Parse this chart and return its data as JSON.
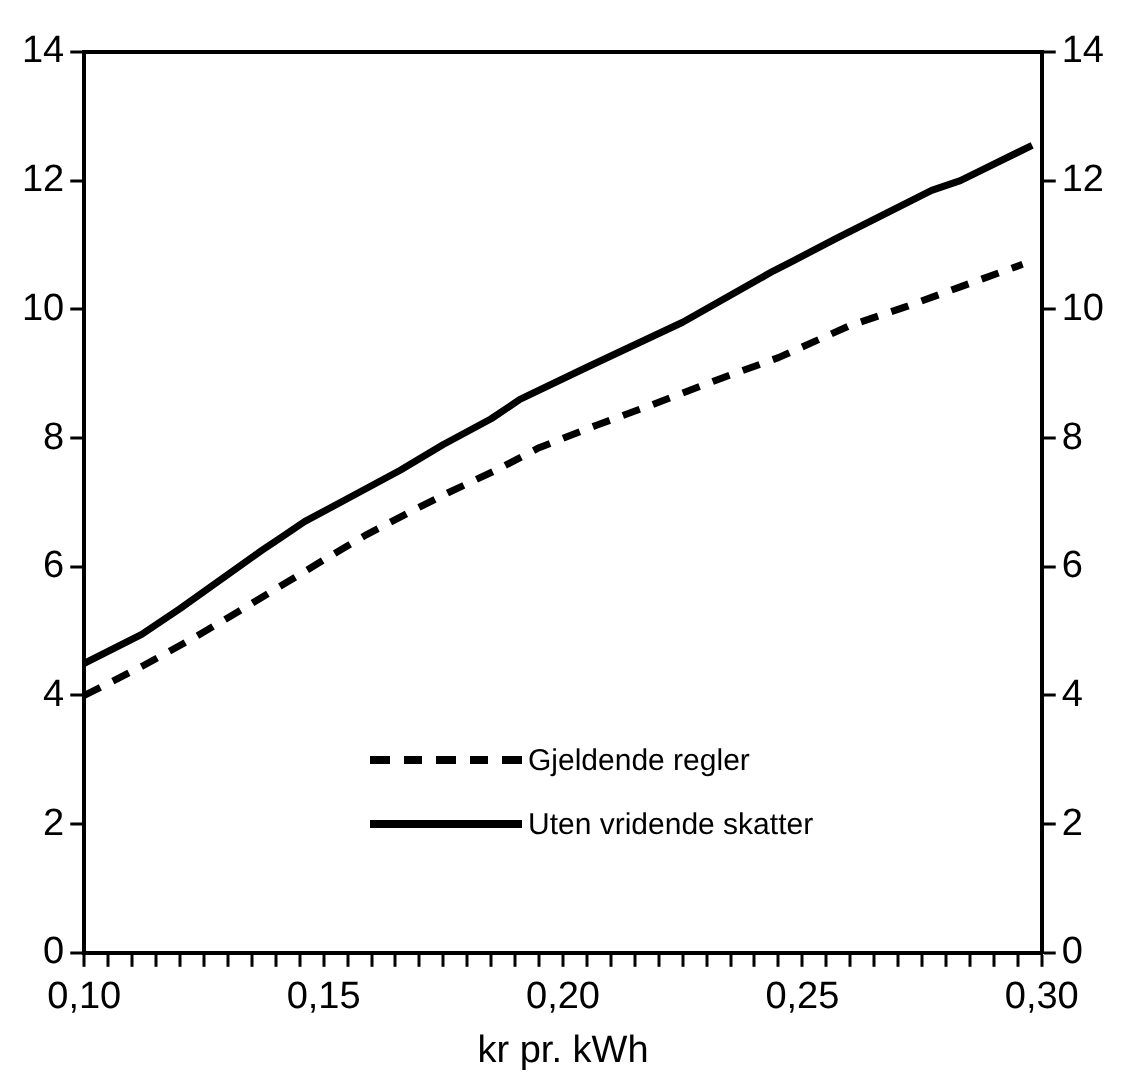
{
  "chart_data": {
    "type": "line",
    "xlabel": "kr pr. kWh",
    "xlim": [
      0.1,
      0.3
    ],
    "xticks": [
      {
        "value": 0.1,
        "label": "0,10"
      },
      {
        "value": 0.105,
        "label": null
      },
      {
        "value": 0.11,
        "label": null
      },
      {
        "value": 0.115,
        "label": null
      },
      {
        "value": 0.12,
        "label": null
      },
      {
        "value": 0.125,
        "label": null
      },
      {
        "value": 0.13,
        "label": null
      },
      {
        "value": 0.135,
        "label": null
      },
      {
        "value": 0.14,
        "label": null
      },
      {
        "value": 0.145,
        "label": null
      },
      {
        "value": 0.15,
        "label": "0,15"
      },
      {
        "value": 0.155,
        "label": null
      },
      {
        "value": 0.16,
        "label": null
      },
      {
        "value": 0.165,
        "label": null
      },
      {
        "value": 0.17,
        "label": null
      },
      {
        "value": 0.175,
        "label": null
      },
      {
        "value": 0.18,
        "label": null
      },
      {
        "value": 0.185,
        "label": null
      },
      {
        "value": 0.19,
        "label": null
      },
      {
        "value": 0.195,
        "label": null
      },
      {
        "value": 0.2,
        "label": "0,20"
      },
      {
        "value": 0.205,
        "label": null
      },
      {
        "value": 0.21,
        "label": null
      },
      {
        "value": 0.215,
        "label": null
      },
      {
        "value": 0.22,
        "label": null
      },
      {
        "value": 0.225,
        "label": null
      },
      {
        "value": 0.23,
        "label": null
      },
      {
        "value": 0.235,
        "label": null
      },
      {
        "value": 0.24,
        "label": null
      },
      {
        "value": 0.245,
        "label": null
      },
      {
        "value": 0.25,
        "label": "0,25"
      },
      {
        "value": 0.255,
        "label": null
      },
      {
        "value": 0.26,
        "label": null
      },
      {
        "value": 0.265,
        "label": null
      },
      {
        "value": 0.27,
        "label": null
      },
      {
        "value": 0.275,
        "label": null
      },
      {
        "value": 0.28,
        "label": null
      },
      {
        "value": 0.285,
        "label": null
      },
      {
        "value": 0.29,
        "label": null
      },
      {
        "value": 0.295,
        "label": null
      },
      {
        "value": 0.3,
        "label": "0,30"
      }
    ],
    "ylim": [
      0,
      14
    ],
    "yticks": [
      0,
      2,
      4,
      6,
      8,
      10,
      12,
      14
    ],
    "y2lim": [
      0,
      14
    ],
    "y2ticks": [
      0,
      2,
      4,
      6,
      8,
      10,
      12,
      14
    ],
    "grid": false,
    "legend": "bottom",
    "marker": "none",
    "series": [
      {
        "name": "Gjeldende regler",
        "color": "#000000",
        "line_style": "dashed",
        "x": [
          0.1,
          0.112,
          0.123,
          0.131,
          0.141,
          0.151,
          0.159,
          0.168,
          0.176,
          0.186,
          0.195,
          0.207,
          0.218,
          0.232,
          0.245,
          0.26,
          0.272,
          0.283,
          0.296
        ],
        "values": [
          4.0,
          4.45,
          4.9,
          5.25,
          5.7,
          6.15,
          6.5,
          6.85,
          7.15,
          7.5,
          7.85,
          8.2,
          8.5,
          8.9,
          9.25,
          9.75,
          10.05,
          10.35,
          10.7
        ]
      },
      {
        "name": "Uten vridende skatter",
        "color": "#000000",
        "line_style": "solid",
        "x": [
          0.1,
          0.112,
          0.12,
          0.137,
          0.141,
          0.146,
          0.156,
          0.166,
          0.175,
          0.185,
          0.191,
          0.205,
          0.225,
          0.244,
          0.248,
          0.257,
          0.277,
          0.283,
          0.298
        ],
        "values": [
          4.5,
          4.95,
          5.35,
          6.25,
          6.45,
          6.7,
          7.1,
          7.5,
          7.9,
          8.3,
          8.6,
          9.1,
          9.8,
          10.6,
          10.75,
          11.1,
          11.85,
          12.0,
          12.55
        ]
      }
    ]
  }
}
